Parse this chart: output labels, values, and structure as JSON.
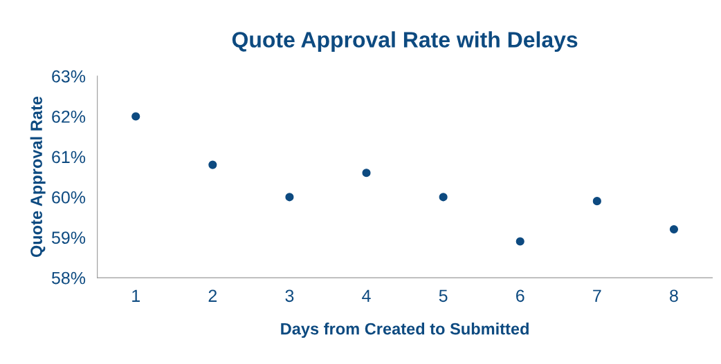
{
  "chart_data": {
    "type": "scatter",
    "title": "Quote Approval Rate with Delays",
    "xlabel": "Days from Created to Submitted",
    "ylabel": "Quote Approval Rate",
    "x": [
      1,
      2,
      3,
      4,
      5,
      6,
      7,
      8
    ],
    "series": [
      {
        "color": "#0d4a80",
        "values": [
          62.0,
          60.8,
          60.0,
          60.6,
          60.0,
          58.9,
          59.9,
          59.2
        ]
      }
    ],
    "xlim": [
      0.5,
      8.5
    ],
    "xticks": [
      1,
      2,
      3,
      4,
      5,
      6,
      7,
      8
    ],
    "ylim": [
      58,
      63
    ],
    "yticks": [
      {
        "value": 58,
        "label": "58%"
      },
      {
        "value": 59,
        "label": "59%"
      },
      {
        "value": 60,
        "label": "60%"
      },
      {
        "value": 61,
        "label": "61%"
      },
      {
        "value": 62,
        "label": "62%"
      },
      {
        "value": 63,
        "label": "63%"
      }
    ],
    "marker": "circle"
  }
}
